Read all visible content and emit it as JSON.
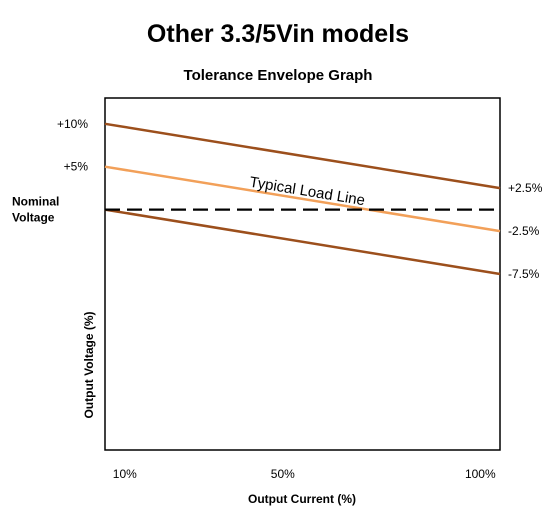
{
  "title": "Other 3.3/5Vin models",
  "chart_data": {
    "type": "line",
    "title": "Tolerance Envelope Graph",
    "xlabel": "Output Current (%)",
    "ylabel": "Output Voltage (%)",
    "x_ticks": [
      {
        "value": 10,
        "label": "10%"
      },
      {
        "value": 50,
        "label": "50%"
      },
      {
        "value": 100,
        "label": "100%"
      }
    ],
    "left_ticks": [
      {
        "value": 10,
        "label": "+10%"
      },
      {
        "value": 5,
        "label": "+5%"
      },
      {
        "value": 0,
        "label": "Nominal\nVoltage"
      }
    ],
    "right_ticks": [
      {
        "value": 2.5,
        "label": "+2.5%"
      },
      {
        "value": -2.5,
        "label": "-2.5%"
      },
      {
        "value": -7.5,
        "label": "-7.5%"
      }
    ],
    "xlim": [
      5,
      105
    ],
    "ylim": [
      -28,
      13
    ],
    "series": [
      {
        "key": "upper",
        "x": [
          5,
          105
        ],
        "y": [
          10,
          2.5
        ],
        "color": "#9c4f1c",
        "dash": false
      },
      {
        "key": "typical",
        "x": [
          5,
          105
        ],
        "y": [
          5,
          -2.5
        ],
        "color": "#f2a059",
        "dash": false
      },
      {
        "key": "lower",
        "x": [
          5,
          105
        ],
        "y": [
          0,
          -7.5
        ],
        "color": "#9c4f1c",
        "dash": false
      },
      {
        "key": "nominal",
        "x": [
          5,
          105
        ],
        "y": [
          0,
          0
        ],
        "color": "#000000",
        "dash": true
      }
    ],
    "annotations": [
      {
        "text": "Typical Load Line",
        "x": 56,
        "y": 1.6
      }
    ],
    "grid": false,
    "legend": "none"
  }
}
